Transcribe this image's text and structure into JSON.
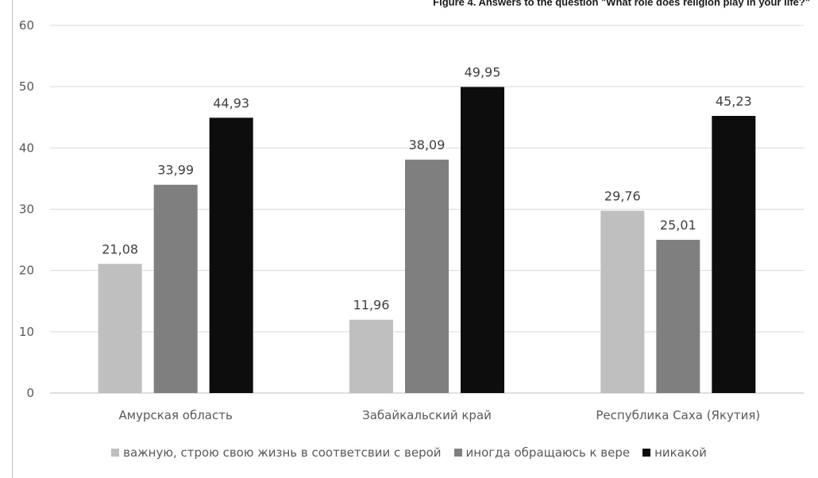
{
  "figure": {
    "caption": "Figure 4. Answers to the question \"What role does religion play in your life?\""
  },
  "chart_data": {
    "type": "bar",
    "categories": [
      "Амурская область",
      "Забайкальский край",
      "Республика Саха (Якутия)"
    ],
    "series": [
      {
        "name": "важную, строю свою жизнь в соответсвии с верой",
        "values": [
          21.08,
          11.96,
          29.76
        ],
        "labels": [
          "21,08",
          "11,96",
          "29,76"
        ],
        "color": "#bfbfbf"
      },
      {
        "name": "иногда обращаюсь к вере",
        "values": [
          33.99,
          38.09,
          25.01
        ],
        "labels": [
          "33,99",
          "38,09",
          "25,01"
        ],
        "color": "#7f7f7f"
      },
      {
        "name": "никакой",
        "values": [
          44.93,
          49.95,
          45.23
        ],
        "labels": [
          "44,93",
          "49,95",
          "45,23"
        ],
        "color": "#0d0d0d"
      }
    ],
    "ylim": [
      0,
      60
    ],
    "yticks": [
      0,
      10,
      20,
      30,
      40,
      50,
      60
    ],
    "grid": true,
    "legend_position": "bottom",
    "title": "",
    "xlabel": "",
    "ylabel": ""
  }
}
